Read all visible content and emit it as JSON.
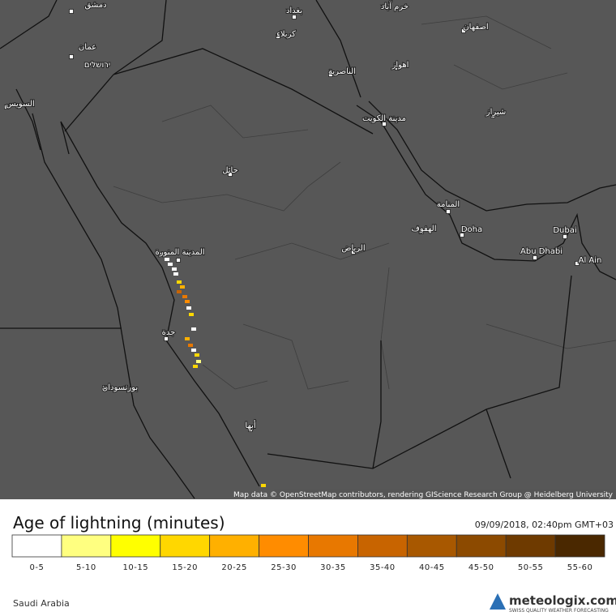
{
  "map": {
    "cities": [
      {
        "label": "دمشق"
      },
      {
        "label": "بغداد"
      },
      {
        "label": "خرم آباد"
      },
      {
        "label": "كربلاء"
      },
      {
        "label": "اصفهان"
      },
      {
        "label": "عمان"
      },
      {
        "label": "ירושלים"
      },
      {
        "label": "اهواز"
      },
      {
        "label": "الناصرية"
      },
      {
        "label": "السويس"
      },
      {
        "label": "مدينة الكويت"
      },
      {
        "label": "شيراز"
      },
      {
        "label": "حائل"
      },
      {
        "label": "المنامة"
      },
      {
        "label": "الهفوف"
      },
      {
        "label": "Doha"
      },
      {
        "label": "Dubai"
      },
      {
        "label": "الرياض"
      },
      {
        "label": "المدينة المنورة"
      },
      {
        "label": "Abu Dhabi"
      },
      {
        "label": "Al Ain"
      },
      {
        "label": "جدة"
      },
      {
        "label": "بورتسودان"
      },
      {
        "label": "أبها"
      }
    ],
    "attribution": "Map data © OpenStreetMap contributors, rendering GIScience Research Group @ Heidelberg University"
  },
  "legend": {
    "title": "Age of lightning (minutes)",
    "timestamp": "09/09/2018, 02:40pm GMT+03",
    "classes": [
      {
        "label": "0-5",
        "color": "#ffffff"
      },
      {
        "label": "5-10",
        "color": "#ffff80"
      },
      {
        "label": "10-15",
        "color": "#ffff00"
      },
      {
        "label": "15-20",
        "color": "#ffd700"
      },
      {
        "label": "20-25",
        "color": "#ffb000"
      },
      {
        "label": "25-30",
        "color": "#ff8c00"
      },
      {
        "label": "30-35",
        "color": "#e87800"
      },
      {
        "label": "35-40",
        "color": "#c86400"
      },
      {
        "label": "40-45",
        "color": "#a85800"
      },
      {
        "label": "45-50",
        "color": "#8c4a00"
      },
      {
        "label": "50-55",
        "color": "#6e3a00"
      },
      {
        "label": "55-60",
        "color": "#4a2800"
      }
    ]
  },
  "footer": {
    "region": "Saudi Arabia",
    "brand": "meteologix.com",
    "tagline": "SWISS QUALITY WEATHER FORECASTING"
  }
}
